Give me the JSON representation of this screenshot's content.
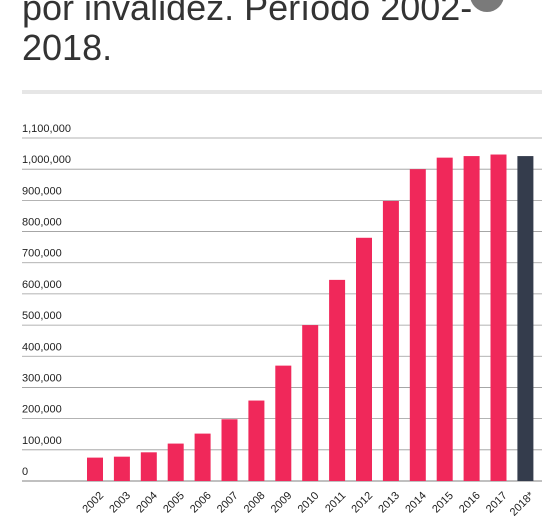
{
  "header": {
    "title_line1": "por invalidez. Período 2002-",
    "title_line2": "2018."
  },
  "colors": {
    "bar": "#f0285a",
    "bar_highlight": "#343c4c",
    "grid": "#9a9a9a",
    "title": "#333333",
    "button": "#7a7a7a"
  },
  "chart_data": {
    "type": "bar",
    "categories": [
      "2002",
      "2003",
      "2004",
      "2005",
      "2006",
      "2007",
      "2008",
      "2009",
      "2010",
      "2011",
      "2012",
      "2013",
      "2014",
      "2015",
      "2016",
      "2017",
      "2018*"
    ],
    "values": [
      75000,
      78000,
      92000,
      120000,
      152000,
      198000,
      258000,
      370000,
      500000,
      645000,
      780000,
      898000,
      1000000,
      1037000,
      1042000,
      1047000,
      1042000
    ],
    "highlight_categories": [
      "2018*"
    ],
    "yticks": [
      "0",
      "100,000",
      "200,000",
      "300,000",
      "400,000",
      "500,000",
      "600,000",
      "700,000",
      "800,000",
      "900,000",
      "1,000,000",
      "1,100,000"
    ],
    "ylim": [
      0,
      1100000
    ],
    "grid": true,
    "legend": "none"
  }
}
